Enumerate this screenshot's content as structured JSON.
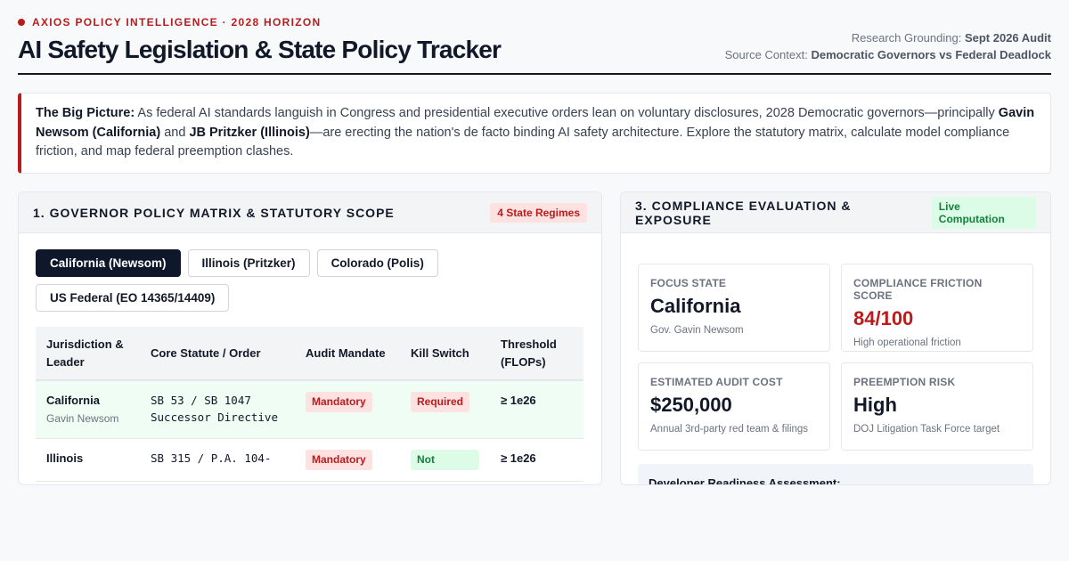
{
  "header": {
    "eyebrow": "AXIOS POLICY INTELLIGENCE · 2028 HORIZON",
    "title": "AI Safety Legislation & State Policy Tracker",
    "grounding_label": "Research Grounding:",
    "grounding_value": "Sept 2026 Audit",
    "context_label": "Source Context:",
    "context_value": "Democratic Governors vs Federal Deadlock"
  },
  "big_picture": {
    "lead": "The Big Picture:",
    "text1": " As federal AI standards languish in Congress and presidential executive orders lean on voluntary disclosures, 2028 Democratic governors—principally ",
    "name1": "Gavin Newsom (California)",
    "text2": " and ",
    "name2": "JB Pritzker (Illinois)",
    "text3": "—are erecting the nation's de facto binding AI safety architecture. Explore the statutory matrix, calculate model compliance friction, and map federal preemption clashes."
  },
  "matrix_panel": {
    "title": "1. GOVERNOR POLICY MATRIX & STATUTORY SCOPE",
    "badge": "4 State Regimes",
    "tabs": [
      {
        "label": "California (Newsom)",
        "active": true
      },
      {
        "label": "Illinois (Pritzker)",
        "active": false
      },
      {
        "label": "Colorado (Polis)",
        "active": false
      },
      {
        "label": "US Federal (EO 14365/14409)",
        "active": false
      }
    ],
    "columns": [
      "Jurisdiction & Leader",
      "Core Statute / Order",
      "Audit Mandate",
      "Kill Switch",
      "Threshold (FLOPs)"
    ],
    "rows": [
      {
        "jurisdiction": "California",
        "leader": "Gavin Newsom",
        "statute": "SB 53 / SB 1047 Successor Directive",
        "audit": "Mandatory",
        "kill_switch": "Required",
        "threshold": "≥ 1e26"
      },
      {
        "jurisdiction": "Illinois",
        "leader": "",
        "statute": "SB 315 / P.A. 104-",
        "audit": "Mandatory",
        "kill_switch": "Not",
        "threshold": "≥ 1e26"
      }
    ]
  },
  "compliance_panel": {
    "title": "3. COMPLIANCE EVALUATION & EXPOSURE",
    "badge": "Live Computation",
    "cards": [
      {
        "label": "FOCUS STATE",
        "value": "California",
        "sub": "Gov. Gavin Newsom"
      },
      {
        "label": "COMPLIANCE FRICTION SCORE",
        "value": "84/100",
        "sub": "High operational friction"
      },
      {
        "label": "ESTIMATED AUDIT COST",
        "value": "$250,000",
        "sub": "Annual 3rd-party red team & filings"
      },
      {
        "label": "PREEMPTION RISK",
        "value": "High",
        "sub": "DOJ Litigation Task Force target"
      }
    ],
    "readiness_title": "Developer Readiness Assessment:"
  },
  "colors": {
    "accent_red": "#b91c1c",
    "accent_green": "#15803d",
    "navy": "#0f172a"
  }
}
